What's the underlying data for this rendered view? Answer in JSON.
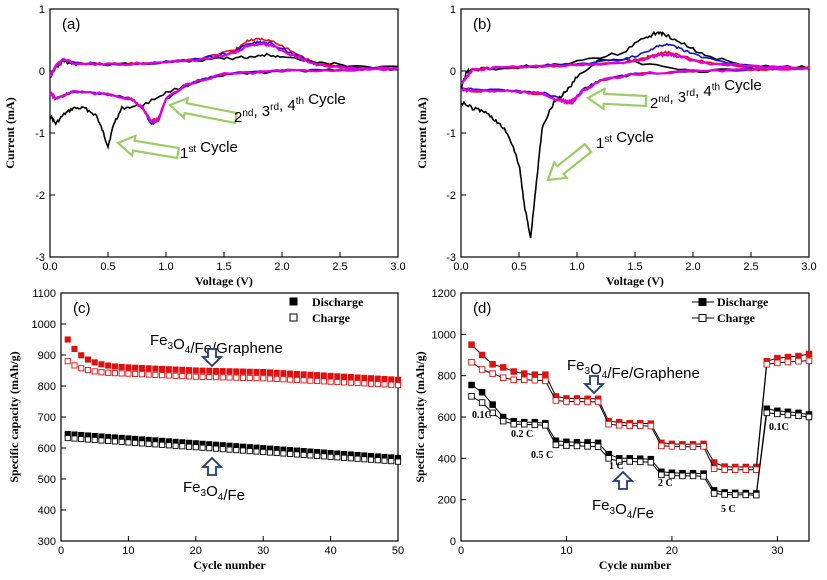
{
  "colors": {
    "black": "#000000",
    "red": "#e01010",
    "magenta": "#e000e0",
    "blue": "#1010e0",
    "arrowGreen": "#9ccc65",
    "arrowBlue": "#1f3a7a"
  },
  "chart_data": [
    {
      "id": "a",
      "type": "line",
      "panel_label": "(a)",
      "xlabel": "Voltage (V)",
      "ylabel": "Current (mA)",
      "xlim": [
        0,
        3
      ],
      "ylim": [
        -3,
        1
      ],
      "xticks": [
        "0.0",
        "0.5",
        "1.0",
        "1.5",
        "2.0",
        "2.5",
        "3.0"
      ],
      "yticks": [
        "1",
        "0",
        "-1",
        "-2",
        "-3"
      ],
      "annotations": [
        {
          "prefix": "1",
          "sup": "st",
          "rest": " Cycle"
        },
        {
          "prefix": "2",
          "sup": "nd",
          "mid1": ", 3",
          "sup2": "rd",
          "mid2": ", 4",
          "sup3": "th",
          "rest": " Cycle"
        }
      ],
      "series": [
        {
          "name": "1st cycle",
          "color": "#000000",
          "x": [
            0,
            0.05,
            0.12,
            0.2,
            0.3,
            0.4,
            0.45,
            0.5,
            0.55,
            0.62,
            0.8,
            1.0,
            1.3,
            1.6,
            2.0,
            2.4,
            3.0,
            2.6,
            2.3,
            2.0,
            1.85,
            1.7,
            1.5,
            1.2,
            0.8,
            0.4,
            0.2,
            0.1,
            0.05,
            0
          ],
          "y": [
            -0.72,
            -0.85,
            -0.7,
            -0.6,
            -0.6,
            -0.72,
            -0.95,
            -1.22,
            -0.85,
            -0.6,
            -0.55,
            -0.35,
            -0.15,
            -0.05,
            0,
            0.02,
            0.05,
            0.08,
            0.15,
            0.24,
            0.26,
            0.22,
            0.2,
            0.17,
            0.12,
            0.1,
            0.12,
            0.15,
            0.05,
            -0.1
          ]
        },
        {
          "name": "2nd cycle",
          "color": "#e01010",
          "x": [
            0,
            0.05,
            0.2,
            0.5,
            0.7,
            0.8,
            0.87,
            0.93,
            1.0,
            1.2,
            1.5,
            2.0,
            2.5,
            3.0,
            2.6,
            2.3,
            2.1,
            1.9,
            1.8,
            1.7,
            1.6,
            1.3,
            0.9,
            0.5,
            0.2,
            0.12,
            0.05,
            0
          ],
          "y": [
            -0.35,
            -0.45,
            -0.33,
            -0.38,
            -0.45,
            -0.6,
            -0.8,
            -0.78,
            -0.45,
            -0.2,
            -0.05,
            0,
            0.02,
            0.03,
            0.05,
            0.1,
            0.3,
            0.5,
            0.52,
            0.48,
            0.35,
            0.2,
            0.13,
            0.11,
            0.13,
            0.2,
            0.08,
            -0.1
          ]
        },
        {
          "name": "3rd cycle",
          "color": "#1010e0",
          "x": [
            0,
            0.05,
            0.2,
            0.5,
            0.7,
            0.8,
            0.87,
            0.93,
            1.0,
            1.2,
            1.5,
            2.0,
            2.5,
            3.0,
            2.6,
            2.3,
            2.1,
            1.9,
            1.8,
            1.7,
            1.6,
            1.3,
            0.9,
            0.5,
            0.2,
            0.12,
            0.05,
            0
          ],
          "y": [
            -0.35,
            -0.45,
            -0.33,
            -0.38,
            -0.45,
            -0.6,
            -0.85,
            -0.82,
            -0.45,
            -0.2,
            -0.05,
            0,
            0.02,
            0.03,
            0.05,
            0.1,
            0.27,
            0.45,
            0.47,
            0.43,
            0.32,
            0.19,
            0.13,
            0.11,
            0.13,
            0.2,
            0.08,
            -0.1
          ]
        },
        {
          "name": "4th cycle",
          "color": "#e000e0",
          "x": [
            0,
            0.05,
            0.2,
            0.5,
            0.7,
            0.8,
            0.87,
            0.93,
            1.0,
            1.2,
            1.5,
            2.0,
            2.5,
            3.0,
            2.6,
            2.3,
            2.1,
            1.9,
            1.8,
            1.7,
            1.6,
            1.3,
            0.9,
            0.5,
            0.2,
            0.12,
            0.05,
            0
          ],
          "y": [
            -0.35,
            -0.45,
            -0.33,
            -0.38,
            -0.45,
            -0.6,
            -0.82,
            -0.8,
            -0.45,
            -0.2,
            -0.05,
            0,
            0.02,
            0.03,
            0.05,
            0.1,
            0.25,
            0.42,
            0.44,
            0.4,
            0.3,
            0.18,
            0.12,
            0.11,
            0.13,
            0.2,
            0.08,
            -0.1
          ]
        }
      ]
    },
    {
      "id": "b",
      "type": "line",
      "panel_label": "(b)",
      "xlabel": "Voltage (V)",
      "ylabel": "Current (mA)",
      "xlim": [
        0,
        3
      ],
      "ylim": [
        -3,
        1
      ],
      "xticks": [
        "0.0",
        "0.5",
        "1.0",
        "1.5",
        "2.0",
        "2.5",
        "3.0"
      ],
      "yticks": [
        "1",
        "0",
        "-1",
        "-2",
        "-3"
      ],
      "annotations": [
        {
          "prefix": "1",
          "sup": "st",
          "rest": " Cycle"
        },
        {
          "prefix": "2",
          "sup": "nd",
          "mid1": ", 3",
          "sup2": "rd",
          "mid2": ", 4",
          "sup3": "th",
          "rest": " Cycle"
        }
      ],
      "series": [
        {
          "name": "1st cycle",
          "color": "#000000",
          "x": [
            0,
            0.1,
            0.2,
            0.3,
            0.4,
            0.5,
            0.55,
            0.6,
            0.65,
            0.7,
            0.8,
            0.9,
            1.0,
            1.2,
            1.5,
            2.0,
            2.5,
            3.0,
            2.5,
            2.1,
            1.9,
            1.75,
            1.7,
            1.6,
            1.4,
            1.0,
            0.6,
            0.3,
            0.1,
            0.05,
            0
          ],
          "y": [
            -0.5,
            -0.6,
            -0.65,
            -0.8,
            -1.0,
            -1.5,
            -2.2,
            -2.7,
            -1.8,
            -0.9,
            -0.5,
            -0.35,
            -0.1,
            0.2,
            0.15,
            0,
            0.02,
            0.05,
            0.1,
            0.25,
            0.45,
            0.6,
            0.62,
            0.55,
            0.3,
            0.15,
            0.08,
            0.05,
            0.02,
            0,
            -0.3
          ]
        },
        {
          "name": "2nd cycle",
          "color": "#1010e0",
          "x": [
            0,
            0.1,
            0.4,
            0.7,
            0.85,
            0.92,
            0.97,
            1.05,
            1.2,
            1.5,
            2.0,
            2.5,
            3.0,
            2.5,
            2.1,
            1.9,
            1.8,
            1.7,
            1.6,
            1.4,
            1.0,
            0.6,
            0.3,
            0.1,
            0
          ],
          "y": [
            -0.28,
            -0.3,
            -0.3,
            -0.35,
            -0.45,
            -0.5,
            -0.48,
            -0.3,
            -0.15,
            -0.05,
            0,
            0.02,
            0.05,
            0.08,
            0.2,
            0.35,
            0.42,
            0.4,
            0.3,
            0.18,
            0.12,
            0.08,
            0.05,
            0.02,
            -0.2
          ]
        },
        {
          "name": "3rd cycle",
          "color": "#e01010",
          "x": [
            0,
            0.1,
            0.4,
            0.7,
            0.85,
            0.92,
            0.97,
            1.05,
            1.2,
            1.5,
            2.0,
            2.5,
            3.0,
            2.5,
            2.1,
            1.9,
            1.8,
            1.7,
            1.6,
            1.4,
            1.0,
            0.6,
            0.3,
            0.1,
            0
          ],
          "y": [
            -0.3,
            -0.32,
            -0.32,
            -0.37,
            -0.47,
            -0.52,
            -0.5,
            -0.32,
            -0.16,
            -0.05,
            0,
            0.02,
            0.05,
            0.07,
            0.15,
            0.25,
            0.3,
            0.29,
            0.22,
            0.14,
            0.1,
            0.07,
            0.05,
            0.02,
            -0.2
          ]
        },
        {
          "name": "4th cycle",
          "color": "#e000e0",
          "x": [
            0,
            0.1,
            0.4,
            0.7,
            0.85,
            0.92,
            0.97,
            1.05,
            1.2,
            1.5,
            2.0,
            2.5,
            3.0,
            2.5,
            2.1,
            1.9,
            1.8,
            1.7,
            1.6,
            1.4,
            1.0,
            0.6,
            0.3,
            0.1,
            0
          ],
          "y": [
            -0.3,
            -0.32,
            -0.32,
            -0.37,
            -0.47,
            -0.5,
            -0.48,
            -0.32,
            -0.16,
            -0.05,
            0,
            0.02,
            0.05,
            0.07,
            0.13,
            0.22,
            0.27,
            0.26,
            0.2,
            0.13,
            0.1,
            0.07,
            0.05,
            0.02,
            -0.2
          ]
        }
      ]
    },
    {
      "id": "c",
      "type": "scatter",
      "panel_label": "(c)",
      "xlabel": "Cycle number",
      "ylabel": "Specific capacity (mAh/g)",
      "xlim": [
        0,
        50
      ],
      "ylim": [
        300,
        1100
      ],
      "xticks": [
        "0",
        "10",
        "20",
        "30",
        "40",
        "50"
      ],
      "yticks": [
        "300",
        "400",
        "500",
        "600",
        "700",
        "800",
        "900",
        "1000",
        "1100"
      ],
      "legend": [
        {
          "label": "Discharge",
          "marker": "filled-square"
        },
        {
          "label": "Charge",
          "marker": "open-square"
        }
      ],
      "labels": {
        "graphene": {
          "base": "Fe",
          "s1": "3",
          "mid": "O",
          "s2": "4",
          "rest": "/Fe/Graphene"
        },
        "fe": {
          "base": "Fe",
          "s1": "3",
          "mid": "O",
          "s2": "4",
          "rest": "/Fe"
        }
      },
      "series": [
        {
          "name": "Fe3O4/Fe/Graphene Discharge",
          "color": "#e01010",
          "filled": true,
          "start": 950,
          "knee": 3,
          "plateau": [
            905,
            860,
            850,
            845
          ],
          "end": 820
        },
        {
          "name": "Fe3O4/Fe/Graphene Charge",
          "color": "#e01010",
          "filled": false,
          "start": 880,
          "knee": 3,
          "plateau": [
            855,
            840,
            830,
            825
          ],
          "end": 803
        },
        {
          "name": "Fe3O4/Fe Discharge",
          "color": "#000000",
          "filled": true,
          "start": 645,
          "end": 568
        },
        {
          "name": "Fe3O4/Fe Charge",
          "color": "#000000",
          "filled": false,
          "start": 632,
          "end": 556
        }
      ]
    },
    {
      "id": "d",
      "type": "line",
      "panel_label": "(d)",
      "xlabel": "Cycle number",
      "ylabel": "Specific capacity (mAh/g)",
      "xlim": [
        0,
        33
      ],
      "ylim": [
        0,
        1200
      ],
      "xticks": [
        "0",
        "10",
        "20",
        "30"
      ],
      "yticks": [
        "0",
        "200",
        "400",
        "600",
        "800",
        "1000",
        "1200"
      ],
      "legend": [
        {
          "label": "Discharge",
          "marker": "filled-square"
        },
        {
          "label": "Charge",
          "marker": "open-square"
        }
      ],
      "labels": {
        "graphene": {
          "base": "Fe",
          "s1": "3",
          "mid": "O",
          "s2": "4",
          "rest": "/Fe/Graphene"
        },
        "fe": {
          "base": "Fe",
          "s1": "3",
          "mid": "O",
          "s2": "4",
          "rest": "/Fe"
        }
      },
      "rate_labels": [
        "0.1C",
        "0.2 C",
        "0.5 C",
        "1 C",
        "2 C",
        "5 C",
        "0.1C"
      ],
      "series": [
        {
          "name": "Fe3O4/Fe/Graphene Discharge",
          "color": "#e01010",
          "filled": true,
          "x": [
            1,
            2,
            3,
            4,
            5,
            6,
            7,
            8,
            9,
            10,
            11,
            12,
            13,
            14,
            15,
            16,
            17,
            18,
            19,
            20,
            21,
            22,
            23,
            24,
            25,
            26,
            27,
            28,
            29,
            30,
            31,
            32,
            33
          ],
          "y": [
            950,
            900,
            855,
            840,
            820,
            810,
            805,
            805,
            700,
            690,
            690,
            688,
            688,
            580,
            575,
            570,
            570,
            568,
            475,
            470,
            468,
            468,
            470,
            380,
            360,
            358,
            358,
            358,
            870,
            885,
            890,
            895,
            905
          ]
        },
        {
          "name": "Fe3O4/Fe/Graphene Charge",
          "color": "#e01010",
          "filled": false,
          "x": [
            1,
            2,
            3,
            4,
            5,
            6,
            7,
            8,
            9,
            10,
            11,
            12,
            13,
            14,
            15,
            16,
            17,
            18,
            19,
            20,
            21,
            22,
            23,
            24,
            25,
            26,
            27,
            28,
            29,
            30,
            31,
            32,
            33
          ],
          "y": [
            865,
            830,
            810,
            790,
            780,
            780,
            778,
            775,
            680,
            675,
            675,
            673,
            673,
            565,
            560,
            558,
            558,
            556,
            460,
            458,
            456,
            456,
            458,
            350,
            345,
            345,
            345,
            345,
            855,
            862,
            866,
            870,
            872
          ]
        },
        {
          "name": "Fe3O4/Fe Discharge",
          "color": "#000000",
          "filled": true,
          "x": [
            1,
            2,
            3,
            4,
            5,
            6,
            7,
            8,
            9,
            10,
            11,
            12,
            13,
            14,
            15,
            16,
            17,
            18,
            19,
            20,
            21,
            22,
            23,
            24,
            25,
            26,
            27,
            28,
            29,
            30,
            31,
            32,
            33
          ],
          "y": [
            755,
            720,
            660,
            600,
            580,
            575,
            575,
            570,
            485,
            480,
            478,
            477,
            475,
            420,
            400,
            400,
            398,
            396,
            335,
            330,
            328,
            328,
            326,
            245,
            235,
            233,
            232,
            230,
            640,
            630,
            625,
            620,
            612
          ]
        },
        {
          "name": "Fe3O4/Fe Charge",
          "color": "#000000",
          "filled": false,
          "x": [
            1,
            2,
            3,
            4,
            5,
            6,
            7,
            8,
            9,
            10,
            11,
            12,
            13,
            14,
            15,
            16,
            17,
            18,
            19,
            20,
            21,
            22,
            23,
            24,
            25,
            26,
            27,
            28,
            29,
            30,
            31,
            32,
            33
          ],
          "y": [
            700,
            670,
            620,
            580,
            565,
            565,
            562,
            560,
            465,
            462,
            460,
            458,
            456,
            400,
            385,
            385,
            383,
            381,
            320,
            317,
            315,
            315,
            313,
            230,
            225,
            224,
            223,
            222,
            620,
            615,
            610,
            606,
            600
          ]
        }
      ]
    }
  ]
}
